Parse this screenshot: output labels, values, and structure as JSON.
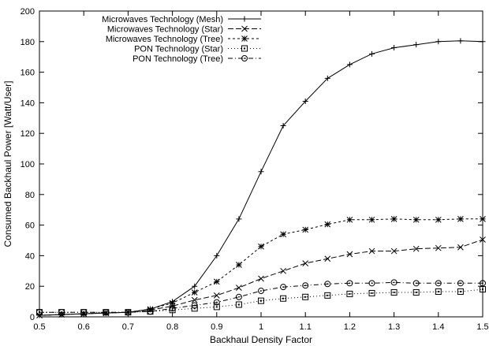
{
  "chart_data": {
    "type": "line",
    "xlabel": "Backhaul Density Factor",
    "ylabel": "Consumed Backhaul Power [Watt/User]",
    "xlim": [
      0.5,
      1.5
    ],
    "ylim": [
      0,
      200
    ],
    "x_ticks": [
      "0.5",
      "0.6",
      "0.7",
      "0.8",
      "0.9",
      "1",
      "1.1",
      "1.2",
      "1.3",
      "1.4",
      "1.5"
    ],
    "y_ticks": [
      "0",
      "20",
      "40",
      "60",
      "80",
      "100",
      "120",
      "140",
      "160",
      "180",
      "200"
    ],
    "grid": false,
    "legend_position": "top-left",
    "x": [
      0.5,
      0.55,
      0.6,
      0.65,
      0.7,
      0.75,
      0.8,
      0.85,
      0.9,
      0.95,
      1.0,
      1.05,
      1.1,
      1.15,
      1.2,
      1.25,
      1.3,
      1.35,
      1.4,
      1.45,
      1.5
    ],
    "series": [
      {
        "name": "Microwaves Technology (Mesh)",
        "marker": "plus",
        "dash": "",
        "values": [
          1,
          1.5,
          2,
          2.5,
          3,
          5,
          10,
          20,
          40,
          64,
          95,
          125,
          141,
          156,
          165,
          172,
          176,
          178,
          180,
          180.5,
          180
        ]
      },
      {
        "name": "Microwaves Technology (Star)",
        "marker": "cross",
        "dash": "7,3",
        "values": [
          1,
          1.5,
          2,
          2.5,
          3,
          4.5,
          7,
          11,
          14,
          19,
          25,
          30,
          35,
          38,
          41,
          43,
          43,
          44.5,
          45,
          45.5,
          50.5
        ]
      },
      {
        "name": "Microwaves Technology (Tree)",
        "marker": "asterisk",
        "dash": "3,3",
        "values": [
          1,
          1.5,
          2,
          2.5,
          3,
          5,
          9,
          16,
          23,
          34,
          46,
          54,
          57,
          60.5,
          63.5,
          63.5,
          64,
          63.5,
          63.5,
          64,
          64
        ]
      },
      {
        "name": "PON Technology (Star)",
        "marker": "square",
        "dash": "1,3",
        "values": [
          3,
          3,
          3,
          3,
          3,
          3.5,
          4.5,
          5.5,
          6.5,
          8,
          10.5,
          12,
          13,
          14,
          15,
          15.5,
          16,
          16,
          16.5,
          16.5,
          18
        ]
      },
      {
        "name": "PON Technology (Tree)",
        "marker": "circle",
        "dash": "6,3,1,3",
        "values": [
          3,
          3,
          3,
          3,
          3,
          3.5,
          5.5,
          7.5,
          9.5,
          13,
          17,
          19.5,
          20.5,
          21.5,
          22,
          22,
          22.5,
          22,
          22,
          22,
          22
        ]
      }
    ]
  }
}
